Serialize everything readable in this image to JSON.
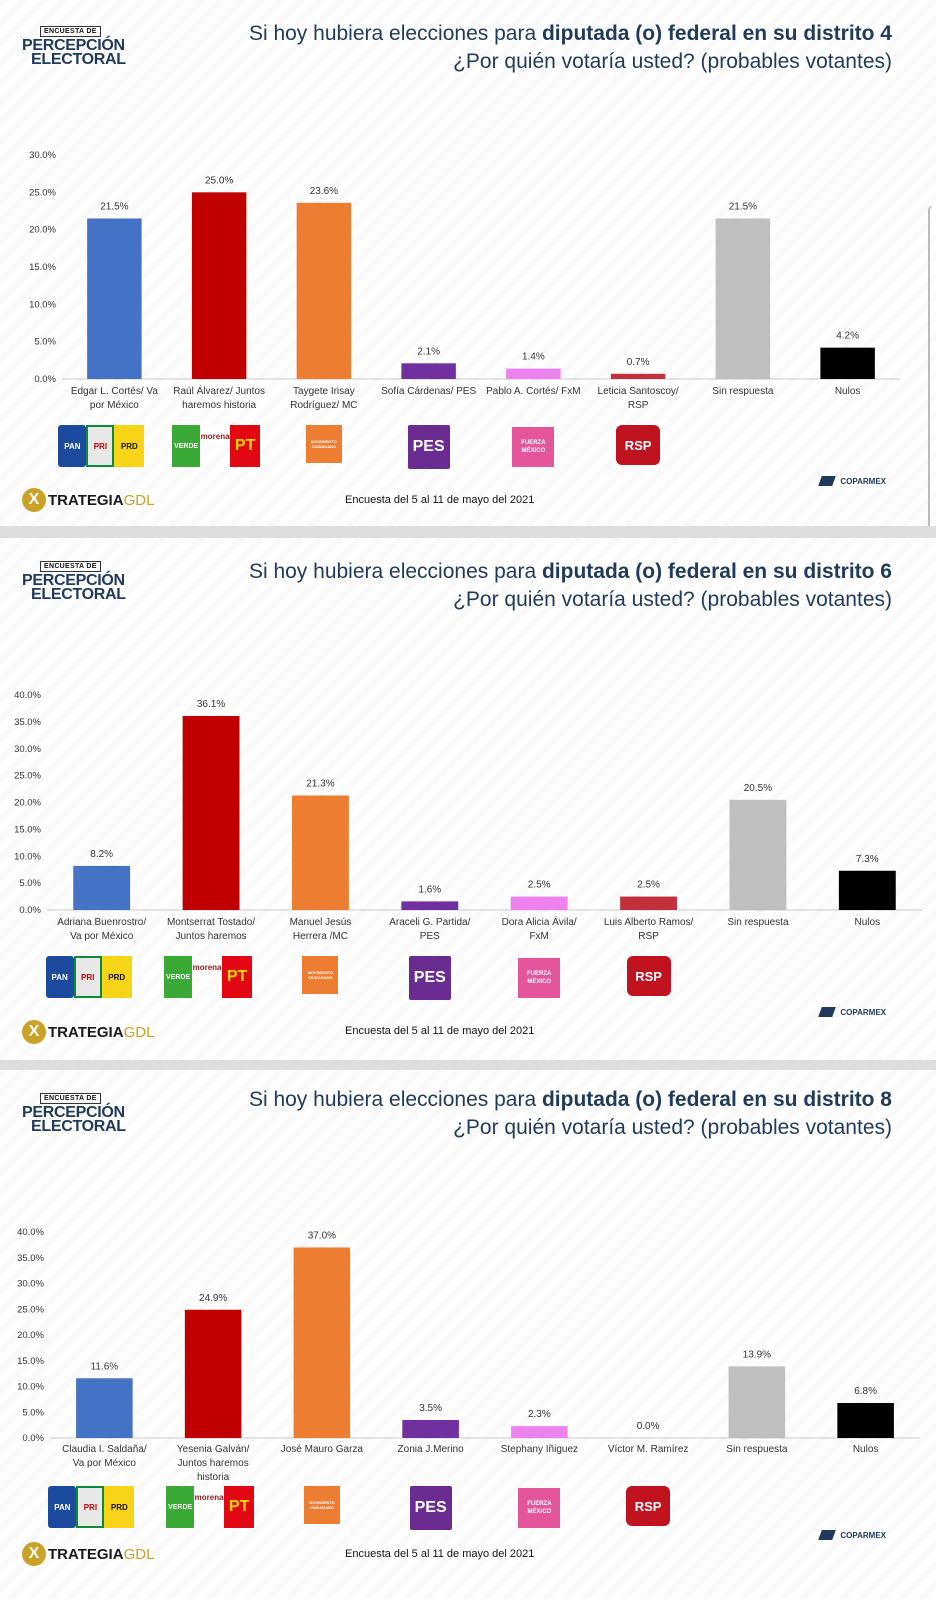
{
  "panels": [
    {
      "brand": {
        "tag": "ENCUESTA DE",
        "line1": "PERCEPCIÓN",
        "line2": "ELECTORAL"
      },
      "title_prefix": "Si hoy hubiera elecciones para ",
      "title_bold": "diputada (o) federal en su distrito 4",
      "subtitle": "¿Por quién votaría usted? (probables votantes)",
      "footer_brand": {
        "x": "X",
        "main": "TRATEGIA",
        "suffix": "GDL"
      },
      "footer_date": "Encuesta del 5 al 11 de mayo del 2021",
      "coparmex": "COPARMEX"
    },
    {
      "brand": {
        "tag": "ENCUESTA DE",
        "line1": "PERCEPCIÓN",
        "line2": "ELECTORAL"
      },
      "title_prefix": "Si hoy hubiera elecciones para ",
      "title_bold": "diputada (o) federal en su distrito 6",
      "subtitle": "¿Por quién votaría usted? (probables votantes)",
      "footer_brand": {
        "x": "X",
        "main": "TRATEGIA",
        "suffix": "GDL"
      },
      "footer_date": "Encuesta del 5 al 11 de mayo del 2021",
      "coparmex": "COPARMEX"
    },
    {
      "brand": {
        "tag": "ENCUESTA DE",
        "line1": "PERCEPCIÓN",
        "line2": "ELECTORAL"
      },
      "title_prefix": "Si hoy hubiera elecciones para ",
      "title_bold": "diputada (o) federal en su distrito 8",
      "subtitle": "¿Por quién votaría usted? (probables votantes)",
      "footer_brand": {
        "x": "X",
        "main": "TRATEGIA",
        "suffix": "GDL"
      },
      "footer_date": "Encuesta del 5 al 11 de mayo del 2021",
      "coparmex": "COPARMEX"
    }
  ],
  "logos": {
    "pan": "PAN",
    "pri": "PRI",
    "prd": "PRD",
    "verde": "VERDE",
    "morena": "morena",
    "pt": "PT",
    "mc": "MOVIMIENTO CIUDADANO",
    "pes": "PES",
    "fxm": "FUERZA MÉXICO",
    "rsp": "RSP"
  },
  "colors": {
    "va_por_mexico": "#4472c4",
    "juntos": "#c00000",
    "mc": "#ed7d31",
    "pes": "#7030a0",
    "fxm": "#ee82ee",
    "rsp": "#c0313d",
    "sin_respuesta": "#bfbfbf",
    "nulos": "#000000"
  },
  "chart_data": [
    {
      "type": "bar",
      "categories": [
        [
          "Edgar L. Cortés/ Va",
          "por México"
        ],
        [
          "Raúl Álvarez/ Juntos",
          "haremos historia"
        ],
        [
          "Taygete Irisay",
          "Rodríguez/ MC"
        ],
        [
          "Sofía Cárdenas/ PES"
        ],
        [
          "Pablo A. Cortés/ FxM"
        ],
        [
          "Leticia Santoscoy/",
          "RSP"
        ],
        [
          "Sin respuesta"
        ],
        [
          "Nulos"
        ]
      ],
      "values": [
        21.5,
        25.0,
        23.6,
        2.1,
        1.4,
        0.7,
        21.5,
        4.2
      ],
      "value_labels": [
        "21.5%",
        "25.0%",
        "23.6%",
        "2.1%",
        "1.4%",
        "0.7%",
        "21.5%",
        "4.2%"
      ],
      "colors": [
        "#4472c4",
        "#c00000",
        "#ed7d31",
        "#7030a0",
        "#ee82ee",
        "#c0313d",
        "#bfbfbf",
        "#000000"
      ],
      "ylim": [
        0,
        30
      ],
      "yticks": [
        "0.0%",
        "5.0%",
        "10.0%",
        "15.0%",
        "20.0%",
        "25.0%",
        "30.0%"
      ]
    },
    {
      "type": "bar",
      "categories": [
        [
          "Adriana Buenrostro/",
          "Va por México"
        ],
        [
          "Montserrat Tostado/",
          "Juntos haremos"
        ],
        [
          "Manuel Jesús",
          "Herrera /MC"
        ],
        [
          "Araceli G. Partida/",
          "PES"
        ],
        [
          "Dora Alicia Ávila/",
          "FxM"
        ],
        [
          "Luis Alberto Ramos/",
          "RSP"
        ],
        [
          "Sin respuesta"
        ],
        [
          "Nulos"
        ]
      ],
      "values": [
        8.2,
        36.1,
        21.3,
        1.6,
        2.5,
        2.5,
        20.5,
        7.3
      ],
      "value_labels": [
        "8.2%",
        "36.1%",
        "21.3%",
        "1.6%",
        "2.5%",
        "2.5%",
        "20.5%",
        "7.3%"
      ],
      "colors": [
        "#4472c4",
        "#c00000",
        "#ed7d31",
        "#7030a0",
        "#ee82ee",
        "#c0313d",
        "#bfbfbf",
        "#000000"
      ],
      "ylim": [
        0,
        40
      ],
      "yticks": [
        "0.0%",
        "5.0%",
        "10.0%",
        "15.0%",
        "20.0%",
        "25.0%",
        "30.0%",
        "35.0%",
        "40.0%"
      ]
    },
    {
      "type": "bar",
      "categories": [
        [
          "Claudia I. Saldaña/",
          "Va por México"
        ],
        [
          "Yesenia Galván/",
          "Juntos haremos",
          "historia"
        ],
        [
          "José Mauro Garza"
        ],
        [
          "Zonia J.Merino"
        ],
        [
          "Stephany Iñiguez"
        ],
        [
          "Víctor M. Ramírez"
        ],
        [
          "Sin respuesta"
        ],
        [
          "Nulos"
        ]
      ],
      "values": [
        11.6,
        24.9,
        37.0,
        3.5,
        2.3,
        0.0,
        13.9,
        6.8
      ],
      "value_labels": [
        "11.6%",
        "24.9%",
        "37.0%",
        "3.5%",
        "2.3%",
        "0.0%",
        "13.9%",
        "6.8%"
      ],
      "colors": [
        "#4472c4",
        "#c00000",
        "#ed7d31",
        "#7030a0",
        "#ee82ee",
        "#c0313d",
        "#bfbfbf",
        "#000000"
      ],
      "ylim": [
        0,
        40
      ],
      "yticks": [
        "0.0%",
        "5.0%",
        "10.0%",
        "15.0%",
        "20.0%",
        "25.0%",
        "30.0%",
        "35.0%",
        "40.0%"
      ]
    }
  ]
}
